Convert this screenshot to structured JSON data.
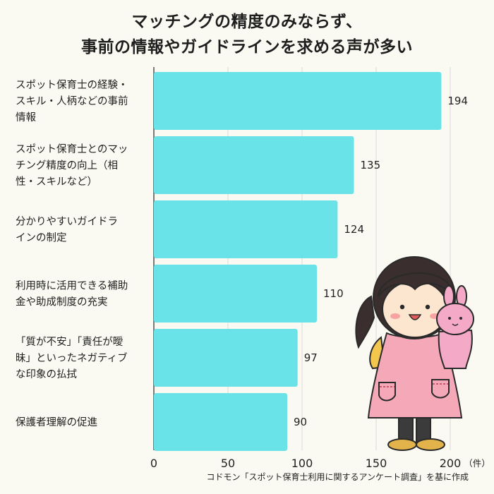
{
  "title_line1": "マッチングの精度のみならず、",
  "title_line2": "事前の情報やガイドラインを求める声が多い",
  "source": "コドモン「スポット保育士利用に関するアンケート調査」を基に作成",
  "chart_data": {
    "type": "bar",
    "orientation": "horizontal",
    "title": "マッチングの精度のみならず、事前の情報やガイドラインを求める声が多い",
    "categories": [
      [
        "スポット保育士の経験・",
        "スキル・人柄などの事前",
        "情報"
      ],
      [
        "スポット保育士とのマッ",
        "チング精度の向上（相",
        "性・スキルなど）"
      ],
      [
        "分かりやすいガイドラ",
        "インの制定"
      ],
      [
        "利用時に活用できる補助",
        "金や助成制度の充実"
      ],
      [
        "「質が不安」「責任が曖",
        "昧」といったネガティブ",
        "な印象の払拭"
      ],
      [
        "保護者理解の促進"
      ]
    ],
    "values": [
      194,
      135,
      124,
      110,
      97,
      90
    ],
    "value_labels": [
      "194",
      "135",
      "124",
      "110",
      "97",
      "90"
    ],
    "xlim": [
      0,
      200
    ],
    "xticks": [
      0,
      50,
      100,
      150,
      200
    ],
    "xtick_labels": [
      "0",
      "50",
      "100",
      "150",
      "200"
    ],
    "unit": "（件）",
    "bar_color": "#69e3e7",
    "grid": true
  }
}
